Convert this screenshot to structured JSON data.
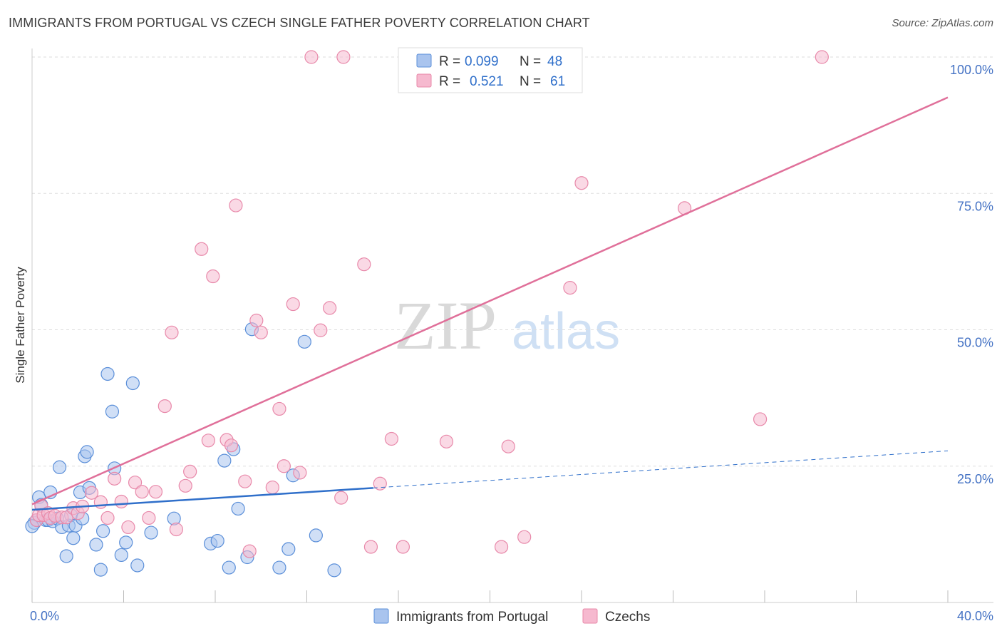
{
  "header": {
    "title": "IMMIGRANTS FROM PORTUGAL VS CZECH SINGLE FATHER POVERTY CORRELATION CHART",
    "source": "Source: ZipAtlas.com"
  },
  "watermark": {
    "zip": "ZIP",
    "atlas": "atlas"
  },
  "colors": {
    "series1_fill": "#a9c4ee",
    "series1_stroke": "#5b8fd9",
    "series1_line": "#2f6fca",
    "series2_fill": "#f6b9cf",
    "series2_stroke": "#e889aa",
    "series2_line": "#e0709a",
    "grid": "#dddddd",
    "tick_label": "#4472c4"
  },
  "legend": {
    "rows": [
      {
        "r_label": "R =",
        "r_value": "0.099",
        "n_label": "N =",
        "n_value": "48"
      },
      {
        "r_label": "R =",
        "r_value": "0.521",
        "n_label": "N =",
        "n_value": "61"
      }
    ]
  },
  "chart_data": {
    "type": "scatter",
    "title": "IMMIGRANTS FROM PORTUGAL VS CZECH SINGLE FATHER POVERTY CORRELATION CHART",
    "ylabel": "Single Father Poverty",
    "xlabel": "",
    "xlim": [
      0,
      40
    ],
    "ylim": [
      0,
      100
    ],
    "x_tick_labels": [
      "0.0%",
      "40.0%"
    ],
    "y_ticks": [
      25,
      50,
      75,
      100
    ],
    "y_tick_labels": [
      "25.0%",
      "50.0%",
      "75.0%",
      "100.0%"
    ],
    "grid": true,
    "legend_position": "top-center",
    "series": [
      {
        "name": "Immigrants from Portugal",
        "r": 0.099,
        "n": 48,
        "trend": {
          "x0": 0,
          "y0": 17.0,
          "x1": 14.9,
          "y1": 21.0,
          "dashed_x1": 40,
          "dashed_y1": 27.8
        },
        "points": [
          [
            0.1,
            14.6
          ],
          [
            0.2,
            15.1
          ],
          [
            0.3,
            19.3
          ],
          [
            0.4,
            17.9
          ],
          [
            0.6,
            15.1
          ],
          [
            0.7,
            15.1
          ],
          [
            0.8,
            20.2
          ],
          [
            0.9,
            14.9
          ],
          [
            1.1,
            15.4
          ],
          [
            1.2,
            24.8
          ],
          [
            1.3,
            13.8
          ],
          [
            1.5,
            8.5
          ],
          [
            1.6,
            14.1
          ],
          [
            1.7,
            16.0
          ],
          [
            1.8,
            11.8
          ],
          [
            1.9,
            14.1
          ],
          [
            2.1,
            20.2
          ],
          [
            2.2,
            15.4
          ],
          [
            2.3,
            26.8
          ],
          [
            2.4,
            27.6
          ],
          [
            2.5,
            21.0
          ],
          [
            2.8,
            10.6
          ],
          [
            3.0,
            6.0
          ],
          [
            3.1,
            13.1
          ],
          [
            3.3,
            41.9
          ],
          [
            3.5,
            35.0
          ],
          [
            3.6,
            24.6
          ],
          [
            3.9,
            8.7
          ],
          [
            4.1,
            11.0
          ],
          [
            4.4,
            40.2
          ],
          [
            4.6,
            6.8
          ],
          [
            5.2,
            12.8
          ],
          [
            6.2,
            15.4
          ],
          [
            7.8,
            10.8
          ],
          [
            8.1,
            11.3
          ],
          [
            8.4,
            26.0
          ],
          [
            8.6,
            6.4
          ],
          [
            8.8,
            28.1
          ],
          [
            9.0,
            17.2
          ],
          [
            9.4,
            8.3
          ],
          [
            9.6,
            50.1
          ],
          [
            10.8,
            6.4
          ],
          [
            11.2,
            9.8
          ],
          [
            11.4,
            23.3
          ],
          [
            11.9,
            47.8
          ],
          [
            12.4,
            12.3
          ],
          [
            13.2,
            5.9
          ],
          [
            0.0,
            14.0
          ]
        ]
      },
      {
        "name": "Czechs",
        "r": 0.521,
        "n": 61,
        "trend": {
          "x0": 0,
          "y0": 18.0,
          "x1": 40,
          "y1": 92.6
        },
        "points": [
          [
            0.2,
            15.1
          ],
          [
            0.3,
            16.0
          ],
          [
            0.4,
            17.7
          ],
          [
            0.5,
            16.0
          ],
          [
            0.7,
            16.4
          ],
          [
            0.8,
            15.5
          ],
          [
            1.0,
            15.9
          ],
          [
            1.3,
            15.6
          ],
          [
            1.5,
            15.6
          ],
          [
            1.8,
            17.3
          ],
          [
            2.0,
            16.4
          ],
          [
            2.2,
            17.6
          ],
          [
            2.6,
            20.1
          ],
          [
            3.0,
            18.4
          ],
          [
            3.3,
            15.5
          ],
          [
            3.6,
            22.7
          ],
          [
            3.9,
            18.5
          ],
          [
            4.2,
            13.8
          ],
          [
            4.5,
            22.0
          ],
          [
            4.8,
            20.3
          ],
          [
            5.1,
            15.5
          ],
          [
            5.4,
            20.3
          ],
          [
            5.8,
            36.0
          ],
          [
            6.1,
            49.5
          ],
          [
            6.3,
            13.4
          ],
          [
            6.7,
            21.4
          ],
          [
            6.9,
            24.0
          ],
          [
            7.4,
            64.8
          ],
          [
            7.7,
            29.7
          ],
          [
            7.9,
            59.8
          ],
          [
            8.5,
            29.8
          ],
          [
            8.7,
            28.8
          ],
          [
            8.9,
            72.8
          ],
          [
            9.3,
            22.2
          ],
          [
            9.5,
            9.4
          ],
          [
            9.8,
            51.7
          ],
          [
            10.0,
            49.5
          ],
          [
            10.5,
            21.1
          ],
          [
            10.8,
            35.5
          ],
          [
            11.0,
            25.0
          ],
          [
            11.4,
            54.7
          ],
          [
            11.7,
            23.8
          ],
          [
            12.2,
            100.0
          ],
          [
            12.6,
            49.9
          ],
          [
            13.0,
            54.0
          ],
          [
            13.5,
            19.2
          ],
          [
            13.6,
            100.0
          ],
          [
            14.5,
            62.0
          ],
          [
            14.8,
            10.2
          ],
          [
            15.2,
            21.8
          ],
          [
            15.7,
            30.0
          ],
          [
            16.2,
            10.2
          ],
          [
            18.1,
            29.5
          ],
          [
            20.5,
            10.2
          ],
          [
            20.8,
            28.6
          ],
          [
            21.5,
            12.0
          ],
          [
            24.0,
            76.9
          ],
          [
            23.5,
            57.7
          ],
          [
            28.5,
            72.3
          ],
          [
            31.8,
            33.6
          ],
          [
            34.5,
            100.0
          ]
        ]
      }
    ]
  }
}
